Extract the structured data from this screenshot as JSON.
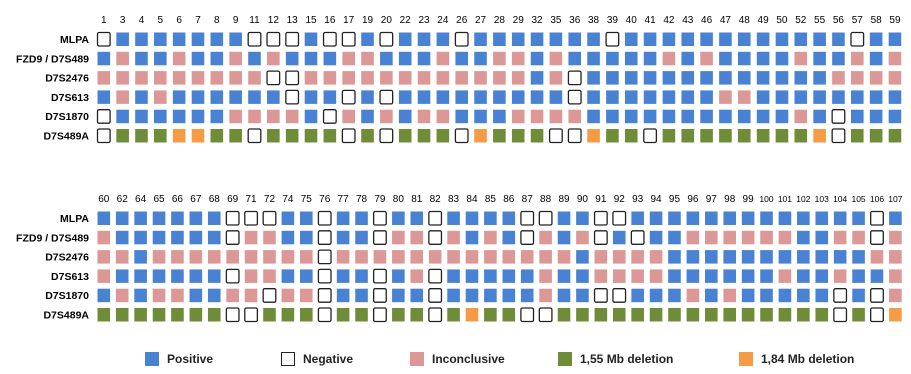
{
  "colors": {
    "P": "#4a82d3",
    "N": "#ffffff",
    "I": "#dc9797",
    "G": "#6f8c38",
    "O": "#f59b45"
  },
  "row_labels": [
    "MLPA",
    "FZD9 / D7S489",
    "D7S2476",
    "D7S613",
    "D7S1870",
    "D7S489A"
  ],
  "panels": [
    {
      "columns": [
        "1",
        "3",
        "4",
        "5",
        "6",
        "7",
        "8",
        "9",
        "11",
        "12",
        "13",
        "15",
        "16",
        "17",
        "19",
        "20",
        "22",
        "23",
        "24",
        "26",
        "27",
        "28",
        "29",
        "32",
        "35",
        "36",
        "38",
        "39",
        "40",
        "41",
        "42",
        "43",
        "46",
        "47",
        "48",
        "49",
        "50",
        "52",
        "55",
        "56",
        "57",
        "58",
        "59"
      ],
      "rows": [
        "NPPPPPPPNNNPNNPNPPPNPPPPPPPNPPPPPPPPPPPPNPP",
        "PIPPIPPIPIPPPIIPPPIPPIIPIPPPPPIPIPPPPIPPIPI",
        "IIIIIIIIINNIIIIIIIIIIIIPINPPPPPPPPPPPPPIIII",
        "PIPIPPPPPPNPPNPNPPPPPPPPPNPPPPPPPIIPPPPPPPP",
        "NPPPPPPIIIIPNIPIPIIPPPIIIIPPPPPPPPPPPIPNPPP",
        "NGGGOOGGNGGGGNGNGGGNOGGGNNOGGNGGGGGGGGONGGG"
      ]
    },
    {
      "columns": [
        "60",
        "62",
        "64",
        "65",
        "66",
        "67",
        "68",
        "69",
        "71",
        "72",
        "74",
        "75",
        "76",
        "77",
        "78",
        "79",
        "80",
        "81",
        "82",
        "83",
        "84",
        "85",
        "86",
        "87",
        "88",
        "89",
        "90",
        "91",
        "92",
        "93",
        "94",
        "95",
        "96",
        "97",
        "98",
        "99",
        "100",
        "101",
        "102",
        "103",
        "104",
        "105",
        "106",
        "107"
      ],
      "rows": [
        "PPPPPPPNNNPPNPPNPPNPPPPNNPPNNPPPPPPPPPPPPPNP",
        "IPPPPPPNIIPPNPPNIINIPIPNIPINPNPPIIIIIIPPIINI",
        "IIPIIIIIIIIINIIIIIIIIIIIIIPIIIIPPPPPPPPPPPII",
        "IPPPPPPNIIPPNPPNPINPPPPPIPPIIIIPPPPPPIPPIPPI",
        "PIPIIPPIINIINPPNPPNPPPPPIPPNNPPPIPIPPPPPNPNI",
        "GGGGGGGNNGGGNGGNGGNGOGGNNGGGGGGGGGGGGGGGNGNO"
      ]
    }
  ],
  "legend": [
    {
      "status": "P",
      "label": "Positive"
    },
    {
      "status": "N",
      "label": "Negative"
    },
    {
      "status": "I",
      "label": "Inconclusive"
    },
    {
      "status": "G",
      "label": "1,55 Mb deletion"
    },
    {
      "status": "O",
      "label": "1,84 Mb deletion"
    }
  ]
}
